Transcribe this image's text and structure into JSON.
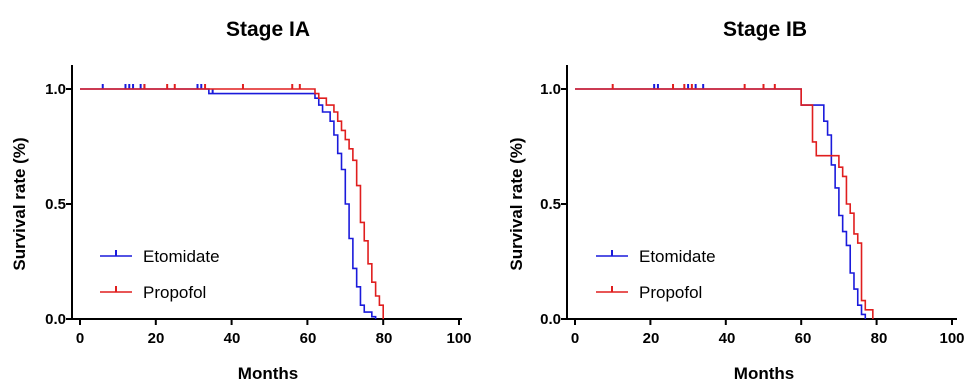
{
  "chart_data": [
    {
      "type": "line",
      "title": "Stage IA",
      "xlabel": "Months",
      "ylabel": "Survival rate (%)",
      "xlim": [
        0,
        100
      ],
      "ylim": [
        0,
        1.0
      ],
      "xticks": [
        "0",
        "20",
        "40",
        "60",
        "80",
        "100"
      ],
      "yticks": [
        "0.0",
        "0.5",
        "1.0"
      ],
      "legend_position": "bottom-left",
      "series": [
        {
          "name": "Etomidate",
          "color": "#1a1adb",
          "x": [
            0,
            34,
            62,
            63,
            64,
            66,
            67,
            68,
            69,
            70,
            71,
            72,
            73,
            74,
            75,
            76,
            77,
            78
          ],
          "y": [
            1.0,
            0.98,
            0.96,
            0.93,
            0.9,
            0.86,
            0.8,
            0.72,
            0.65,
            0.5,
            0.35,
            0.22,
            0.14,
            0.06,
            0.03,
            0.03,
            0.01,
            0.0
          ],
          "censored": [
            6,
            12,
            13,
            14,
            16,
            17,
            31,
            32,
            35
          ]
        },
        {
          "name": "Propofol",
          "color": "#e01e1e",
          "x": [
            0,
            62,
            63,
            65,
            67,
            68,
            69,
            70,
            71,
            72,
            73,
            74,
            75,
            76,
            77,
            78,
            79,
            80
          ],
          "y": [
            1.0,
            0.98,
            0.96,
            0.93,
            0.9,
            0.86,
            0.82,
            0.78,
            0.74,
            0.69,
            0.58,
            0.42,
            0.34,
            0.24,
            0.16,
            0.1,
            0.06,
            0.0
          ],
          "censored": [
            17,
            23,
            25,
            33,
            43,
            56,
            58
          ]
        }
      ]
    },
    {
      "type": "line",
      "title": "Stage IB",
      "xlabel": "Months",
      "ylabel": "Survival rate (%)",
      "xlim": [
        0,
        100
      ],
      "ylim": [
        0,
        1.0
      ],
      "xticks": [
        "0",
        "20",
        "40",
        "60",
        "80",
        "100"
      ],
      "yticks": [
        "0.0",
        "0.5",
        "1.0"
      ],
      "legend_position": "bottom-left",
      "series": [
        {
          "name": "Etomidate",
          "color": "#1a1adb",
          "x": [
            0,
            60,
            66,
            67,
            68,
            69,
            70,
            71,
            72,
            73,
            74,
            75,
            76,
            77
          ],
          "y": [
            1.0,
            0.93,
            0.86,
            0.8,
            0.67,
            0.57,
            0.45,
            0.38,
            0.32,
            0.2,
            0.13,
            0.06,
            0.02,
            0.0
          ],
          "censored": [
            21,
            22,
            30,
            32,
            34
          ]
        },
        {
          "name": "Propofol",
          "color": "#e01e1e",
          "x": [
            0,
            60,
            63,
            64,
            69,
            70,
            71,
            72,
            73,
            74,
            75,
            76,
            77,
            79
          ],
          "y": [
            1.0,
            0.93,
            0.77,
            0.71,
            0.71,
            0.66,
            0.62,
            0.5,
            0.46,
            0.37,
            0.33,
            0.08,
            0.04,
            0.0
          ],
          "censored": [
            10,
            26,
            29,
            31,
            45,
            50,
            53
          ]
        }
      ]
    }
  ]
}
